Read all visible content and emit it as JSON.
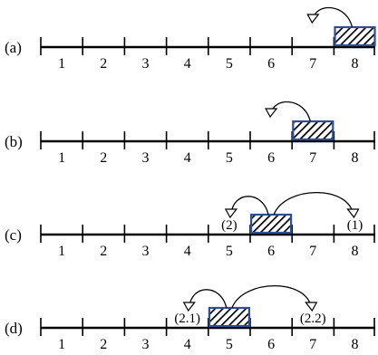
{
  "positions": [
    "1",
    "2",
    "3",
    "4",
    "5",
    "6",
    "7",
    "8"
  ],
  "panels": [
    {
      "label": "(a)",
      "block_cell": 8,
      "arrows": [
        {
          "to_cell": 7,
          "annotation": ""
        }
      ]
    },
    {
      "label": "(b)",
      "block_cell": 7,
      "arrows": [
        {
          "to_cell": 6,
          "annotation": ""
        }
      ]
    },
    {
      "label": "(c)",
      "block_cell": 6,
      "arrows": [
        {
          "to_cell": 5,
          "annotation": "(2)"
        },
        {
          "to_cell": 8,
          "annotation": "(1)"
        }
      ]
    },
    {
      "label": "(d)",
      "block_cell": 5,
      "arrows": [
        {
          "to_cell": 4,
          "annotation": "(2.1)"
        },
        {
          "to_cell": 7,
          "annotation": "(2.2)"
        }
      ]
    }
  ],
  "colors": {
    "line": "#000000",
    "block_border": "#2f4f93",
    "block_hatch": "#000000",
    "background": "#ffffff"
  }
}
